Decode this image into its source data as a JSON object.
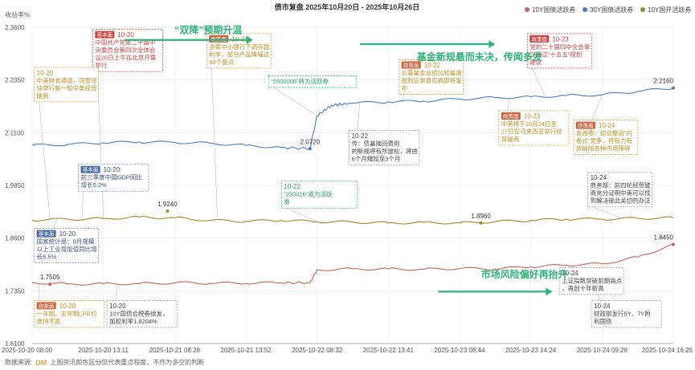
{
  "chart_data": {
    "type": "line",
    "title": "债市复盘 2025年10月20日 - 2025年10月26日",
    "ylabel": "收益率%",
    "ylim": [
      1.61,
      2.36
    ],
    "yticks": [
      "2.3600",
      "2.2350",
      "2.1100",
      "1.9850",
      "1.8600",
      "1.7350",
      "1.6100"
    ],
    "xticks": [
      "2025-10-20 08:00",
      "2025-10-20 13:11",
      "2025-10-21 08:28",
      "2025-10-21 13:52",
      "2025-10-22 08:32",
      "2025-10-22 13:41",
      "2025-10-23 08:44",
      "2025-10-23 14:24",
      "2025-10-24 09:28",
      "2025-10-24 16:26"
    ],
    "grid": true,
    "legend_position": "top-right",
    "series": [
      {
        "name": "10Y国债活跃券",
        "color": "#c9605e",
        "points": [
          [
            0,
            1.755
          ],
          [
            0.5,
            1.751
          ],
          [
            1,
            1.752
          ],
          [
            1.5,
            1.752
          ],
          [
            2,
            1.754
          ],
          [
            2.5,
            1.753
          ],
          [
            3,
            1.753
          ],
          [
            3.5,
            1.754
          ],
          [
            3.9,
            1.754
          ],
          [
            4.0,
            1.785
          ],
          [
            4.5,
            1.787
          ],
          [
            5,
            1.787
          ],
          [
            5.5,
            1.786
          ],
          [
            6,
            1.788
          ],
          [
            6.5,
            1.787
          ],
          [
            7,
            1.792
          ],
          [
            7.5,
            1.796
          ],
          [
            8,
            1.799
          ],
          [
            8.5,
            1.815
          ],
          [
            9,
            1.845
          ]
        ],
        "labels": [
          {
            "x": 0.25,
            "y": 1.7505,
            "text": "1.7505"
          },
          {
            "x": 9,
            "y": 1.845,
            "text": "1.8450"
          }
        ]
      },
      {
        "name": "30Y国债活跃券",
        "color": "#4a7bc0",
        "points": [
          [
            0,
            2.08
          ],
          [
            0.5,
            2.082
          ],
          [
            1,
            2.086
          ],
          [
            1.5,
            2.088
          ],
          [
            2,
            2.087
          ],
          [
            2.5,
            2.085
          ],
          [
            3,
            2.08
          ],
          [
            3.5,
            2.075
          ],
          [
            3.9,
            2.072
          ],
          [
            4.0,
            2.15
          ],
          [
            4.2,
            2.175
          ],
          [
            4.5,
            2.18
          ],
          [
            5,
            2.183
          ],
          [
            5.5,
            2.185
          ],
          [
            6,
            2.19
          ],
          [
            6.5,
            2.193
          ],
          [
            7,
            2.195
          ],
          [
            7.5,
            2.198
          ],
          [
            8,
            2.2
          ],
          [
            8.5,
            2.208
          ],
          [
            9,
            2.216
          ]
        ],
        "labels": [
          {
            "x": 3.9,
            "y": 2.072,
            "text": "2.0720"
          },
          {
            "x": 9,
            "y": 2.216,
            "text": "2.2160"
          }
        ]
      },
      {
        "name": "10Y国开活跃券",
        "color": "#9a8a2a",
        "points": [
          [
            0,
            1.903
          ],
          [
            0.5,
            1.905
          ],
          [
            1,
            1.906
          ],
          [
            1.5,
            1.91
          ],
          [
            2,
            1.908
          ],
          [
            2.5,
            1.902
          ],
          [
            3,
            1.9
          ],
          [
            3.5,
            1.902
          ],
          [
            4,
            1.899
          ],
          [
            4.5,
            1.898
          ],
          [
            5,
            1.896
          ],
          [
            5.5,
            1.897
          ],
          [
            6,
            1.896
          ],
          [
            6.5,
            1.899
          ],
          [
            7,
            1.902
          ],
          [
            7.5,
            1.905
          ],
          [
            8,
            1.905
          ],
          [
            8.5,
            1.907
          ],
          [
            9,
            1.908
          ]
        ],
        "labels": [
          {
            "x": 1.9,
            "y": 1.924,
            "text": "1.9240"
          },
          {
            "x": 6.3,
            "y": 1.896,
            "text": "1.8960"
          }
        ]
      }
    ],
    "headlines": [
      {
        "text": "“双降”预期升温",
        "x": 2.0,
        "y": 2.346
      },
      {
        "text": "基金新规悬而未决，传闻多发",
        "x": 5.4,
        "y": 2.282
      },
      {
        "text": "市场风险偏好再抬升",
        "x": 6.3,
        "y": 1.766
      }
    ],
    "arrows": [
      {
        "from": [
          1.3,
          2.33
        ],
        "to": [
          3.1,
          2.33
        ]
      },
      {
        "from": [
          4.6,
          2.32
        ],
        "to": [
          6.5,
          2.32
        ]
      },
      {
        "from": [
          5.7,
          1.733
        ],
        "to": [
          7.3,
          1.733
        ]
      }
    ],
    "annotations": [
      {
        "tag": "基本面",
        "date": "10-20",
        "body": [
          "中国共产党第二十届中",
          "央委员会第四次全体会",
          "议20日上午在北京开幕",
          "举行"
        ],
        "style": "red",
        "x": 0.85,
        "y": 2.355,
        "anchor_x": 1.0,
        "anchor_y": 1.905
      },
      {
        "tag": "",
        "date": "10-20",
        "body": [
          "中美财长通话，同意尽",
          "快举行新一轮中美经贸",
          "磋商"
        ],
        "style": "gold",
        "x": 0.03,
        "y": 2.265,
        "anchor_x": 0.25,
        "anchor_y": 1.905
      },
      {
        "tag": "政策面",
        "date": "10-21",
        "body": [
          "多家中小银行下调存款",
          "利率，部分产品降幅达",
          "80个基点"
        ],
        "style": "gold",
        "x": 2.45,
        "y": 2.345,
        "anchor_x": 2.6,
        "anchor_y": 1.908
      },
      {
        "tag": "",
        "date": "",
        "body": [
          "“2500006”转为活跃券"
        ],
        "style": "green",
        "x": 3.32,
        "y": 2.245,
        "anchor_x": 4.0,
        "anchor_y": 2.15
      },
      {
        "tag": "基本面",
        "date": "10-20",
        "body": [
          "前三季度中国GDP同比",
          "增长5.2%"
        ],
        "style": "blue",
        "x": 0.65,
        "y": 2.035,
        "anchor_x": 0.7,
        "anchor_y": 1.905
      },
      {
        "tag": "基本面",
        "date": "10-20",
        "body": [
          "国家统计局：9月规模",
          "以上工业增加值同比增",
          "长6.5%"
        ],
        "style": "blue",
        "x": 0.03,
        "y": 1.883,
        "anchor_x": 0.35,
        "anchor_y": 1.905
      },
      {
        "tag": "",
        "date": "10-22",
        "body": [
          "传：债基赎回费用",
          "的新规将有所放松，将由",
          "6个月缩短至3个月"
        ],
        "style": "gray",
        "x": 4.45,
        "y": 2.115,
        "anchor_x": 4.6,
        "anchor_y": 2.18
      },
      {
        "tag": "",
        "date": "10-22",
        "body": [
          "“250016”成为活跃",
          "券"
        ],
        "style": "green",
        "x": 3.5,
        "y": 1.995,
        "anchor_x": 4.0,
        "anchor_y": 1.899
      },
      {
        "tag": "政策面",
        "date": "10-22",
        "body": [
          "公募基金业绩比较基准",
          "规则征求意见稿即将发",
          "布"
        ],
        "style": "gold",
        "x": 5.15,
        "y": 2.283,
        "anchor_x": 5.2,
        "anchor_y": 2.183
      },
      {
        "tag": "政策面",
        "date": "10-23",
        "body": [
          "党的二十届四中全会审",
          "议通过“十五五”规划",
          "建议"
        ],
        "style": "red",
        "x": 6.95,
        "y": 2.345,
        "anchor_x": 7.2,
        "anchor_y": 2.197
      },
      {
        "tag": "政策面",
        "date": "10-23",
        "body": [
          "中美将于10月24日至",
          "27日在马来西亚举行经",
          "贸磋商"
        ],
        "style": "gold",
        "x": 6.55,
        "y": 2.162,
        "anchor_x": 6.7,
        "anchor_y": 2.193
      },
      {
        "tag": "政策面",
        "date": "10-24",
        "body": [
          "发改委：综合整治“内",
          "卷式”竞争，将有力有",
          "效破除各种市场障碍"
        ],
        "style": "gold",
        "x": 7.6,
        "y": 2.14,
        "anchor_x": 8.0,
        "anchor_y": 2.2
      },
      {
        "tag": "",
        "date": "10-24",
        "body": [
          "商务部：前四轮经贸磋",
          "商充分证明中美可以找",
          "到解决彼此关切的办法"
        ],
        "style": "gray",
        "x": 7.8,
        "y": 2.016,
        "anchor_x": 8.3,
        "anchor_y": 1.906
      },
      {
        "tag": "",
        "date": "10-24",
        "body": [
          "上证指数突破前期高点",
          "，再创十年新高"
        ],
        "style": "gray",
        "x": 7.4,
        "y": 1.79,
        "anchor_x": 7.6,
        "anchor_y": 1.796
      },
      {
        "tag": "政策面",
        "date": "10-20",
        "body": [
          "一年期、五年期LPR均",
          "维持不变"
        ],
        "style": "gold",
        "x": 0.03,
        "y": 1.712,
        "anchor_x": 0.1,
        "anchor_y": 1.752
      },
      {
        "tag": "",
        "date": "10-20",
        "body": [
          "10Y国债合税券续发，",
          "加权利率1.8204%"
        ],
        "style": "gray",
        "x": 1.05,
        "y": 1.712,
        "anchor_x": 1.2,
        "anchor_y": 1.752
      },
      {
        "tag": "",
        "date": "10-24",
        "body": [
          "财政部发行5Y、7Y附",
          "利国债"
        ],
        "style": "gray",
        "x": 7.85,
        "y": 1.712,
        "anchor_x": 8.0,
        "anchor_y": 1.799
      }
    ],
    "source": {
      "prefix": "数据来源:",
      "logo": "DM",
      "note": "上图资讯颜色区分仅代表重点程度，不作为多空的判断"
    }
  }
}
